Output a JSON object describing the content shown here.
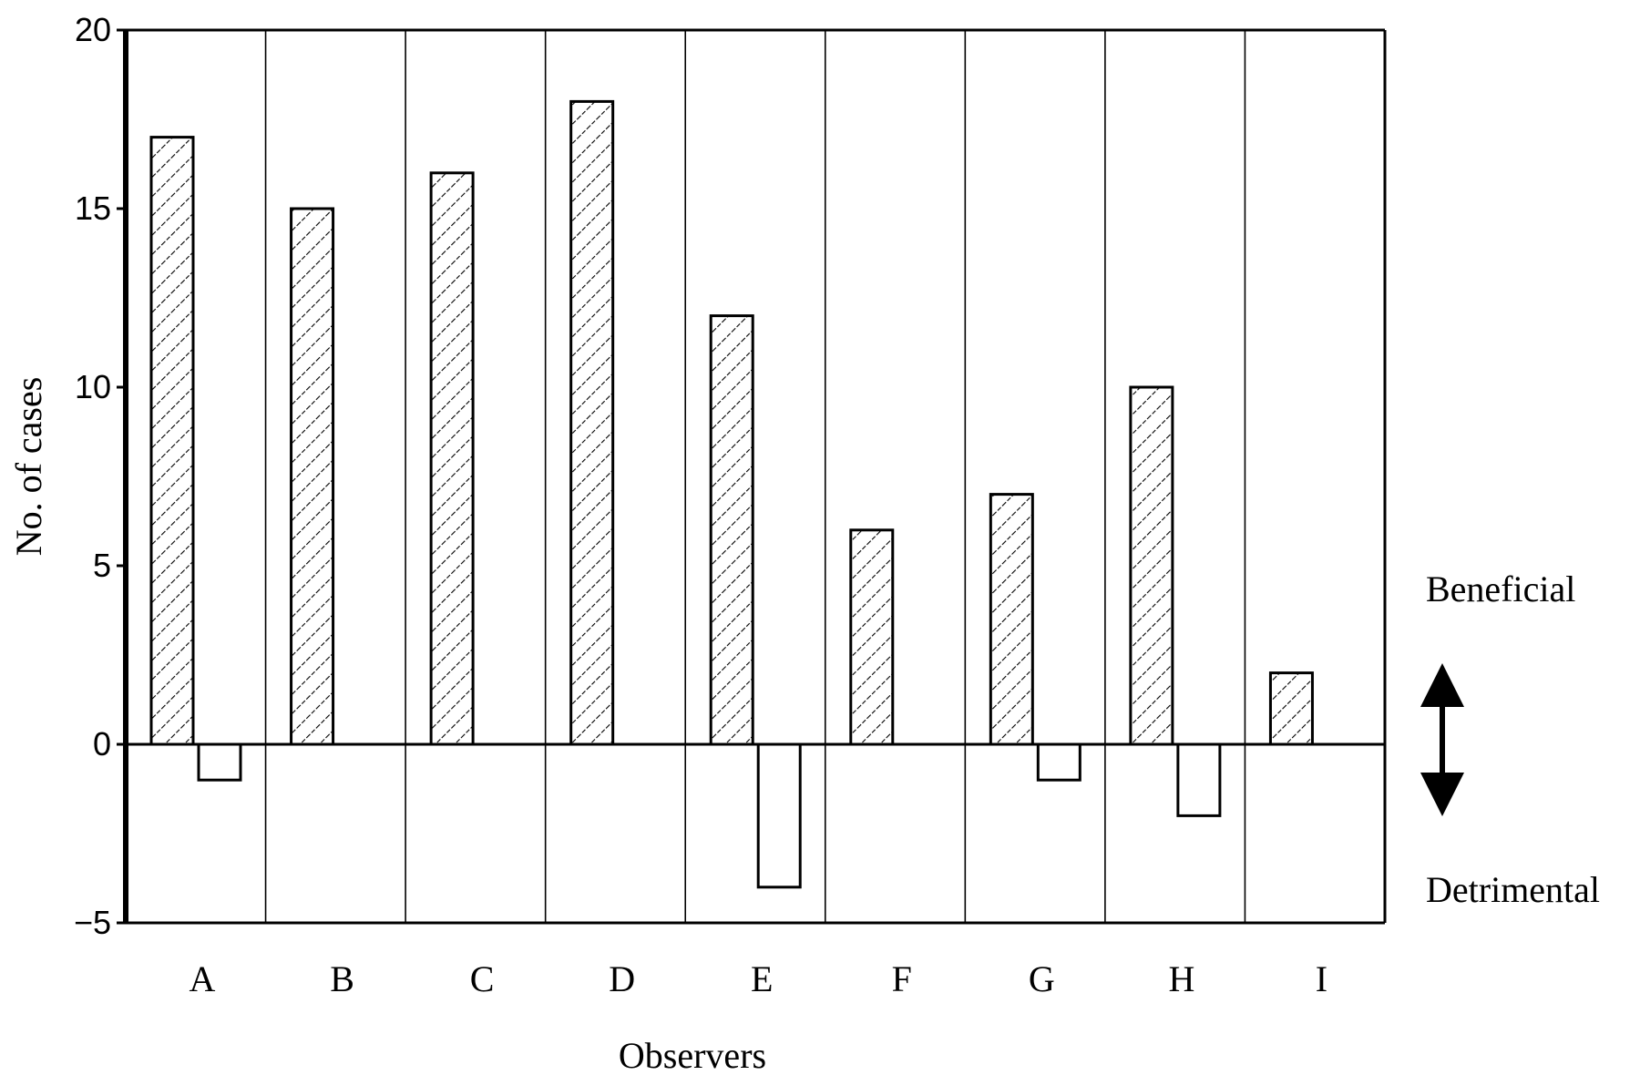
{
  "chart_data": {
    "type": "bar",
    "title": "",
    "xlabel": "Observers",
    "ylabel": "No. of cases",
    "categories": [
      "A",
      "B",
      "C",
      "D",
      "E",
      "F",
      "G",
      "H",
      "I"
    ],
    "series": [
      {
        "values": [
          17,
          15,
          16,
          18,
          12,
          6,
          7,
          10,
          2
        ],
        "pattern": "hatched"
      },
      {
        "values": [
          -1,
          0,
          0,
          0,
          -4,
          0,
          -1,
          -2,
          0
        ],
        "pattern": "empty"
      }
    ],
    "ylim": [
      -5,
      20
    ],
    "yticks": [
      -5,
      0,
      5,
      10,
      15,
      20
    ],
    "grid": "vertical category separators",
    "annotations": {
      "upper": "Beneficial",
      "lower": "Detrimental"
    },
    "colors": {
      "stroke": "#000000",
      "background": "#ffffff"
    }
  }
}
